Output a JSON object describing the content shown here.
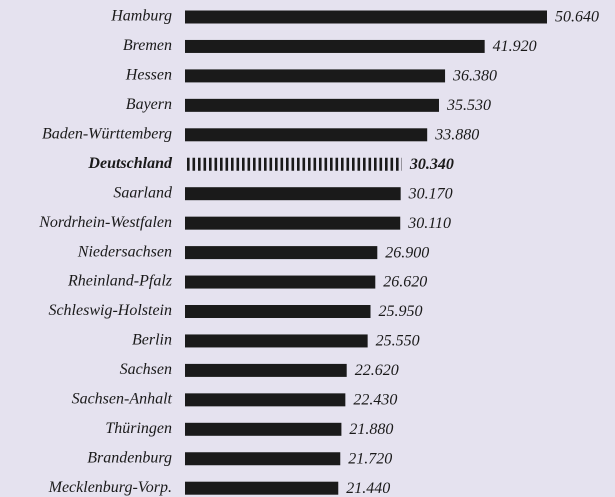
{
  "chart_data": {
    "type": "barh",
    "categories": [
      "Hamburg",
      "Bremen",
      "Hessen",
      "Bayern",
      "Baden-Württemberg",
      "Deutschland",
      "Saarland",
      "Nordrhein-Westfalen",
      "Niedersachsen",
      "Rheinland-Pfalz",
      "Schleswig-Holstein",
      "Berlin",
      "Sachsen",
      "Sachsen-Anhalt",
      "Thüringen",
      "Brandenburg",
      "Mecklenburg-Vorp."
    ],
    "values": [
      50640,
      41920,
      36380,
      35530,
      33880,
      30340,
      30170,
      30110,
      26900,
      26620,
      25950,
      25550,
      22620,
      22430,
      21880,
      21720,
      21440
    ],
    "value_labels": [
      "50.640",
      "41.920",
      "36.380",
      "35.530",
      "33.880",
      "30.340",
      "30.170",
      "30.110",
      "26.900",
      "26.620",
      "25.950",
      "25.550",
      "22.620",
      "22.430",
      "21.880",
      "21.720",
      "21.440"
    ],
    "color": "#1a1a1a",
    "highlight": "Deutschland"
  }
}
